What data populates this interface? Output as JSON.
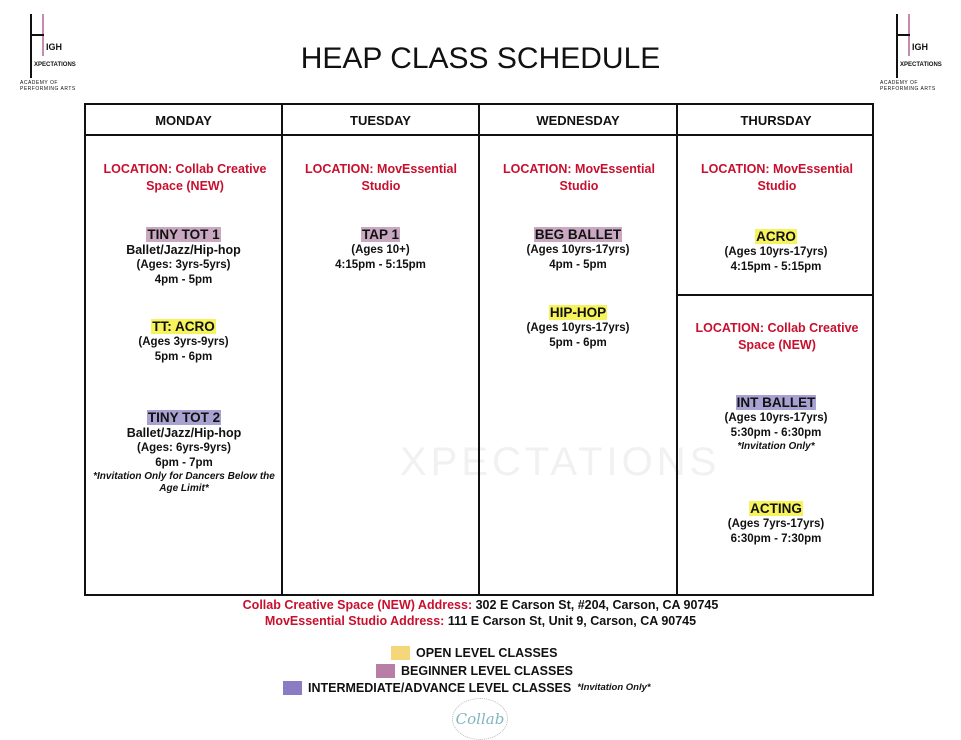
{
  "logo": {
    "text_high": "IGH",
    "text_exp": "XPECTATIONS",
    "arc": "ACADEMY OF PERFORMING ARTS"
  },
  "title": "HEAP CLASS SCHEDULE",
  "days": [
    "MONDAY",
    "TUESDAY",
    "WEDNESDAY",
    "THURSDAY"
  ],
  "loc_label": "LOCATION:",
  "monday": {
    "location": "Collab Creative Space (NEW)",
    "classes": [
      {
        "name": "TINY TOT 1",
        "style": "Ballet/Jazz/Hip-hop",
        "ages": "(Ages: 3yrs-5yrs)",
        "time": "4pm - 5pm"
      },
      {
        "name": "TT: ACRO",
        "ages": "(Ages 3yrs-9yrs)",
        "time": "5pm - 6pm"
      },
      {
        "name": "TINY TOT 2",
        "style": "Ballet/Jazz/Hip-hop",
        "ages": "(Ages: 6yrs-9yrs)",
        "time": "6pm - 7pm",
        "note": "*Invitation Only for Dancers Below the Age Limit*"
      }
    ]
  },
  "tuesday": {
    "location": "MovEssential Studio",
    "classes": [
      {
        "name": "TAP 1",
        "ages": "(Ages 10+)",
        "time": "4:15pm - 5:15pm"
      }
    ]
  },
  "wednesday": {
    "location": "MovEssential Studio",
    "classes": [
      {
        "name": "BEG BALLET",
        "ages": "(Ages 10yrs-17yrs)",
        "time": "4pm - 5pm"
      },
      {
        "name": "HIP-HOP",
        "ages": "(Ages 10yrs-17yrs)",
        "time": "5pm - 6pm"
      }
    ]
  },
  "thursday": {
    "location1": "MovEssential Studio",
    "location2": "Collab Creative Space (NEW)",
    "classes": [
      {
        "name": "ACRO",
        "ages": "(Ages 10yrs-17yrs)",
        "time": "4:15pm - 5:15pm"
      },
      {
        "name": "INT BALLET",
        "ages": "(Ages 10yrs-17yrs)",
        "time": "5:30pm - 6:30pm",
        "note": "*Invitation Only*"
      },
      {
        "name": "ACTING",
        "ages": "(Ages 7yrs-17yrs)",
        "time": "6:30pm - 7:30pm"
      }
    ]
  },
  "addresses": [
    {
      "label": "Collab Creative Space (NEW) Address:",
      "value": "302 E Carson St, #204, Carson, CA 90745"
    },
    {
      "label": "MovEssential Studio Address:",
      "value": "111 E Carson St, Unit 9, Carson, CA 90745"
    }
  ],
  "legend": [
    {
      "label": "OPEN LEVEL CLASSES",
      "color": "#f5d77a"
    },
    {
      "label": "BEGINNER LEVEL CLASSES",
      "color": "#b87fa6"
    },
    {
      "label": "INTERMEDIATE/ADVANCE LEVEL CLASSES",
      "note": "*Invitation Only*",
      "color": "#8a7cc4"
    }
  ],
  "footer_logo": "Collab",
  "highlight_colors": {
    "open": "#f7f35c",
    "beginner": "#c9a8c2",
    "intermediate": "#a7a2d2"
  }
}
